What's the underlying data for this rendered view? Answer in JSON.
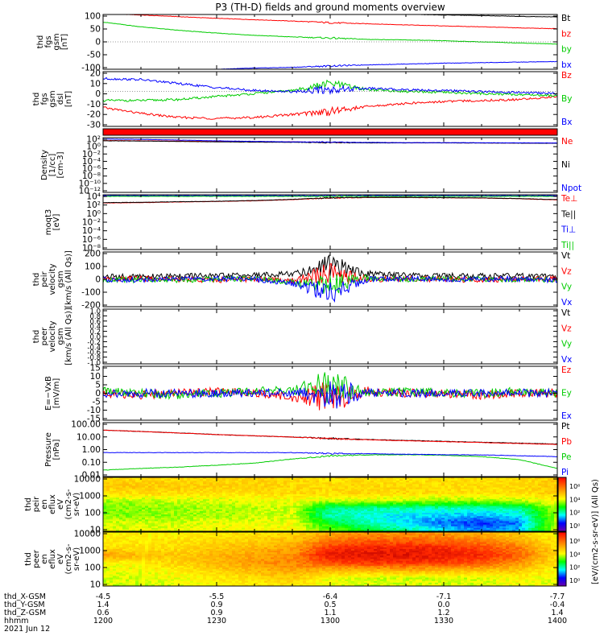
{
  "title": "P3 (TH-D) fields and ground moments overview",
  "colorbar_label": "[eV/(cm2-s-sr-eV)] (All Qs)",
  "colorbar_ticks": [
    "10⁶",
    "10⁴",
    "10²",
    "10⁰"
  ],
  "colors": {
    "black": "#000000",
    "red": "#ff0000",
    "green": "#00cc00",
    "blue": "#0000ff"
  },
  "footer": {
    "rows": [
      {
        "name": "thd_X-GSM",
        "values": [
          "-4.5",
          "-5.5",
          "-6.4",
          "-7.1",
          "-7.7"
        ]
      },
      {
        "name": "thd_Y-GSM",
        "values": [
          "1.4",
          "0.9",
          "0.5",
          "0.0",
          "-0.4"
        ]
      },
      {
        "name": "thd_Z-GSM",
        "values": [
          "0.6",
          "0.9",
          "1.1",
          "1.2",
          "1.4"
        ]
      },
      {
        "name": "hhmm",
        "values": [
          "1200",
          "1230",
          "1300",
          "1330",
          "1400"
        ]
      }
    ],
    "date": "2021 Jun 12"
  },
  "chart_data": [
    {
      "type": "line",
      "id": "fgs_gsm",
      "ylabel": [
        "thd",
        "fgs",
        "gsm",
        "[nT]"
      ],
      "ylim": [
        -100,
        100
      ],
      "yticks": [
        "100",
        "50",
        "0",
        "-50",
        "-100"
      ],
      "x": [
        "1200",
        "1210",
        "1220",
        "1230",
        "1240",
        "1250",
        "1300",
        "1310",
        "1320",
        "1330",
        "1340",
        "1350",
        "1400"
      ],
      "series": [
        {
          "name": "Bt",
          "color": "black",
          "values": [
            130,
            125,
            121,
            118,
            114,
            111,
            108,
            104,
            101,
            98,
            96,
            93,
            91
          ]
        },
        {
          "name": "bz",
          "color": "red",
          "values": [
            104,
            98,
            92,
            86,
            81,
            76,
            70,
            66,
            62,
            58,
            55,
            51,
            48
          ]
        },
        {
          "name": "by",
          "color": "green",
          "values": [
            72,
            55,
            42,
            32,
            24,
            18,
            14,
            9,
            7,
            4,
            0,
            -4,
            -8
          ]
        },
        {
          "name": "bx",
          "color": "blue",
          "values": [
            -115,
            -110,
            -105,
            -100,
            -96,
            -93,
            -88,
            -84,
            -81,
            -78,
            -76,
            -74,
            -72
          ]
        }
      ]
    },
    {
      "type": "line",
      "id": "fgs_dsl",
      "ylabel": [
        "thd",
        "fgs",
        "gsm",
        "dsl",
        "[nT]"
      ],
      "ylim": [
        -35,
        20
      ],
      "yticks": [
        "20",
        "10",
        "0",
        "-10",
        "-20",
        "-30"
      ],
      "x": [
        "1200",
        "1210",
        "1220",
        "1230",
        "1240",
        "1250",
        "1300",
        "1310",
        "1320",
        "1330",
        "1340",
        "1350",
        "1400"
      ],
      "series": [
        {
          "name": "Bz",
          "color": "red",
          "values": [
            -16,
            -22,
            -26,
            -27,
            -26,
            -23,
            -20,
            -15,
            -12,
            -10,
            -9,
            -8,
            -5
          ]
        },
        {
          "name": "By",
          "color": "green",
          "values": [
            -9,
            -9,
            -8,
            -5,
            -2,
            1,
            8,
            2,
            0,
            -1,
            -2,
            -3,
            -4
          ]
        },
        {
          "name": "Bx",
          "color": "blue",
          "values": [
            13,
            12,
            8,
            4,
            1,
            0,
            2,
            3,
            2,
            1,
            0,
            -1,
            -2
          ]
        }
      ]
    },
    {
      "type": "band",
      "id": "flag_bar",
      "color": "red"
    },
    {
      "type": "line",
      "id": "density",
      "ylabel": [
        "Density",
        "[1/cc]",
        "[cm-3]"
      ],
      "ylog": true,
      "ylim": [
        1e-14,
        100
      ],
      "yticks": [
        "10²",
        "10⁰",
        "10⁻²",
        "10⁻⁴",
        "10⁻⁶",
        "10⁻⁸",
        "10⁻¹⁰",
        "10⁻¹²"
      ],
      "x": [
        "1200",
        "1210",
        "1220",
        "1230",
        "1240",
        "1250",
        "1300",
        "1310",
        "1320",
        "1330",
        "1340",
        "1350",
        "1400"
      ],
      "series": [
        {
          "name": "Ne",
          "color": "red",
          "values": [
            15,
            12,
            10,
            8,
            7,
            6,
            4,
            3.5,
            3,
            3,
            3,
            2.8,
            2.5
          ]
        },
        {
          "name": "Ni",
          "color": "black",
          "values": [
            12,
            10,
            8,
            6,
            5,
            4.5,
            3.5,
            3,
            3,
            3,
            2.8,
            2.5,
            2.2
          ]
        },
        {
          "name": "Npot",
          "color": "blue",
          "values": [
            40,
            30,
            20,
            12,
            8,
            6,
            5,
            4,
            3.5,
            3.5,
            3.2,
            3,
            2.8
          ]
        }
      ]
    },
    {
      "type": "line",
      "id": "temp",
      "ylabel": [
        "moqt3",
        "[eV]"
      ],
      "ylog": true,
      "ylim": [
        1e-10,
        10000
      ],
      "yticks": [
        "10⁴",
        "10²",
        "10⁰",
        "10⁻²",
        "10⁻⁴",
        "10⁻⁶",
        "10⁻⁸"
      ],
      "x": [
        "1200",
        "1210",
        "1220",
        "1230",
        "1240",
        "1250",
        "1300",
        "1310",
        "1320",
        "1330",
        "1340",
        "1350",
        "1400"
      ],
      "series": [
        {
          "name": "Te⊥",
          "color": "red",
          "values": [
            80,
            100,
            150,
            200,
            300,
            600,
            1500,
            2000,
            2000,
            1800,
            1500,
            1000,
            500
          ]
        },
        {
          "name": "Te||",
          "color": "black",
          "values": [
            100,
            120,
            170,
            220,
            350,
            700,
            1700,
            2200,
            2100,
            1900,
            1600,
            1100,
            600
          ]
        },
        {
          "name": "Ti⊥",
          "color": "blue",
          "values": [
            6000,
            6000,
            6000,
            6000,
            6000,
            6000,
            6000,
            6000,
            6000,
            6000,
            6000,
            6000,
            6000
          ]
        },
        {
          "name": "Ti||",
          "color": "green",
          "values": [
            4000,
            4000,
            4000,
            4000,
            4000,
            4000,
            4000,
            4000,
            4000,
            4000,
            4000,
            4000,
            4000
          ]
        }
      ]
    },
    {
      "type": "line",
      "id": "peir_vel",
      "ylabel": [
        "thd",
        "peir",
        "velocity",
        "gsm",
        "[km/s (All Qs)]"
      ],
      "ylim": [
        -200,
        200
      ],
      "yticks": [
        "200",
        "100",
        "0",
        "-100",
        "-200"
      ],
      "x": [
        "1200",
        "1210",
        "1220",
        "1230",
        "1240",
        "1250",
        "1300",
        "1310",
        "1320",
        "1330",
        "1340",
        "1350",
        "1400"
      ],
      "series": [
        {
          "name": "Vt",
          "color": "black",
          "values": [
            20,
            20,
            25,
            25,
            30,
            40,
            100,
            40,
            30,
            25,
            25,
            25,
            20
          ]
        },
        {
          "name": "Vz",
          "color": "red",
          "values": [
            0,
            5,
            0,
            -5,
            0,
            -10,
            40,
            0,
            5,
            0,
            -5,
            0,
            5
          ]
        },
        {
          "name": "Vy",
          "color": "green",
          "values": [
            -5,
            0,
            -5,
            0,
            5,
            -20,
            -40,
            10,
            0,
            5,
            0,
            -5,
            0
          ]
        },
        {
          "name": "Vx",
          "color": "blue",
          "values": [
            0,
            -5,
            0,
            5,
            0,
            -30,
            -100,
            0,
            5,
            0,
            5,
            0,
            -5
          ]
        }
      ]
    },
    {
      "type": "line",
      "id": "peer_vel",
      "ylabel": [
        "thd",
        "peer",
        "velocity",
        "gsm",
        "[km/s (All Qs)]"
      ],
      "ylim": [
        -1,
        1
      ],
      "yticks": [
        "1.0",
        "0.8",
        "0.6",
        "0.4",
        "0.2",
        "0.0",
        "-0.2",
        "-0.4",
        "-0.6",
        "-0.8",
        "-1.0"
      ],
      "x": [],
      "series": [
        {
          "name": "Vt",
          "color": "black",
          "values": []
        },
        {
          "name": "Vz",
          "color": "red",
          "values": []
        },
        {
          "name": "Vy",
          "color": "green",
          "values": []
        },
        {
          "name": "Vx",
          "color": "blue",
          "values": []
        }
      ]
    },
    {
      "type": "line",
      "id": "efield",
      "ylabel": [
        "E=−VxB",
        "[mV/m]"
      ],
      "ylim": [
        -15,
        15
      ],
      "yticks": [
        "15",
        "10",
        "5",
        "0",
        "-5",
        "-10",
        "-15"
      ],
      "x": [
        "1200",
        "1210",
        "1220",
        "1230",
        "1240",
        "1250",
        "1300",
        "1310",
        "1320",
        "1330",
        "1340",
        "1350",
        "1400"
      ],
      "series": [
        {
          "name": "Ez",
          "color": "red",
          "values": [
            0,
            -1,
            0,
            1,
            0,
            -2,
            -3,
            1,
            0,
            0,
            -1,
            0,
            0
          ]
        },
        {
          "name": "Ey",
          "color": "green",
          "values": [
            1,
            0,
            -1,
            0,
            1,
            2,
            4,
            0,
            1,
            0,
            0,
            1,
            0
          ]
        },
        {
          "name": "Ex",
          "color": "blue",
          "values": [
            0,
            0,
            0,
            0,
            0,
            0,
            0,
            0,
            0,
            0,
            0,
            0,
            0
          ]
        }
      ]
    },
    {
      "type": "line",
      "id": "pressure",
      "ylabel": [
        "Pressure",
        "[nPa]"
      ],
      "ylog": true,
      "ylim": [
        0.01,
        100
      ],
      "yticks": [
        "100.00",
        "10.00",
        "1.00",
        "0.10",
        "0.01"
      ],
      "x": [
        "1200",
        "1210",
        "1220",
        "1230",
        "1240",
        "1250",
        "1300",
        "1310",
        "1320",
        "1330",
        "1340",
        "1350",
        "1400"
      ],
      "series": [
        {
          "name": "Pt",
          "color": "black",
          "values": [
            28,
            22,
            17,
            13,
            10.5,
            8.5,
            6.8,
            5.6,
            4.8,
            4.1,
            3.5,
            3.0,
            2.6
          ]
        },
        {
          "name": "Pb",
          "color": "red",
          "values": [
            28,
            22,
            17,
            13,
            10.5,
            8.5,
            6.5,
            5.3,
            4.5,
            3.9,
            3.3,
            2.8,
            2.4
          ]
        },
        {
          "name": "Pe",
          "color": "green",
          "values": [
            0.03,
            0.04,
            0.05,
            0.07,
            0.1,
            0.2,
            0.35,
            0.4,
            0.42,
            0.38,
            0.3,
            0.18,
            0.04
          ]
        },
        {
          "name": "Pi",
          "color": "blue",
          "values": [
            0.6,
            0.6,
            0.6,
            0.6,
            0.6,
            0.6,
            0.5,
            0.5,
            0.45,
            0.42,
            0.4,
            0.35,
            0.3
          ]
        }
      ]
    },
    {
      "type": "heatmap",
      "id": "peir_en",
      "ylabel": [
        "thd",
        "peir",
        "en",
        "eflux",
        "eV",
        "(cm2-s-",
        "sr-eV)"
      ],
      "ylog": true,
      "ylim": [
        5,
        30000
      ],
      "yticks": [
        "10000",
        "1000",
        "100",
        "10"
      ],
      "x": [
        "1200",
        "1210",
        "1220",
        "1230",
        "1240",
        "1250",
        "1300",
        "1310",
        "1320",
        "1330",
        "1340",
        "1350",
        "1400"
      ],
      "y": [
        "30000",
        "10000",
        "3000",
        "1000",
        "300",
        "100",
        "30",
        "10"
      ],
      "z": [
        [
          5.6,
          5.6,
          5.6,
          5.6,
          5.6,
          5.6,
          5.5,
          5.5,
          5.5,
          5.5,
          5.5,
          5.5,
          5.7
        ],
        [
          5.8,
          5.8,
          5.8,
          5.7,
          5.7,
          5.6,
          5.6,
          5.6,
          5.6,
          5.6,
          5.6,
          5.6,
          5.8
        ],
        [
          5.5,
          5.6,
          5.6,
          5.5,
          5.5,
          5.6,
          5.6,
          5.6,
          5.6,
          5.5,
          5.5,
          5.5,
          5.7
        ],
        [
          4.8,
          4.9,
          5.0,
          5.0,
          5.1,
          5.2,
          5.0,
          5.0,
          4.9,
          4.8,
          4.8,
          4.9,
          5.3
        ],
        [
          4.6,
          4.7,
          4.8,
          4.8,
          4.9,
          5.0,
          3.6,
          3.5,
          3.5,
          3.4,
          3.4,
          3.5,
          4.9
        ],
        [
          4.7,
          4.7,
          4.8,
          4.8,
          4.9,
          5.0,
          3.4,
          3.2,
          3.0,
          2.9,
          2.8,
          3.0,
          4.8
        ],
        [
          5.0,
          5.0,
          5.0,
          5.1,
          5.1,
          5.2,
          4.0,
          3.4,
          3.0,
          2.5,
          2.2,
          2.5,
          4.9
        ],
        [
          5.1,
          5.1,
          5.2,
          5.2,
          5.2,
          5.3,
          4.6,
          4.0,
          3.6,
          3.0,
          2.6,
          2.8,
          5.0
        ]
      ]
    },
    {
      "type": "heatmap",
      "id": "peer_en",
      "ylabel": [
        "thd",
        "peer",
        "en",
        "eflux",
        "eV",
        "(cm2-s-",
        "sr-eV)"
      ],
      "ylog": true,
      "ylim": [
        5,
        30000
      ],
      "yticks": [
        "10000",
        "1000",
        "100",
        "10"
      ],
      "x": [
        "1200",
        "1210",
        "1220",
        "1230",
        "1240",
        "1250",
        "1300",
        "1310",
        "1320",
        "1330",
        "1340",
        "1350",
        "1400"
      ],
      "y": [
        "30000",
        "10000",
        "3000",
        "1000",
        "300",
        "100",
        "30",
        "10"
      ],
      "z": [
        [
          5.3,
          5.3,
          5.3,
          5.4,
          5.5,
          5.6,
          6.1,
          6.3,
          6.3,
          6.2,
          6.0,
          5.7,
          5.2
        ],
        [
          5.4,
          5.4,
          5.5,
          5.6,
          5.7,
          5.9,
          6.6,
          6.8,
          6.8,
          6.7,
          6.5,
          6.1,
          5.4
        ],
        [
          5.5,
          5.5,
          5.6,
          5.8,
          6.0,
          6.2,
          7.2,
          7.4,
          7.4,
          7.3,
          7.0,
          6.6,
          5.6
        ],
        [
          6.3,
          5.9,
          5.8,
          6.0,
          6.2,
          6.4,
          7.6,
          7.6,
          7.6,
          7.5,
          7.3,
          6.8,
          5.7
        ],
        [
          5.2,
          5.4,
          5.7,
          6.0,
          6.3,
          6.5,
          7.0,
          7.2,
          7.2,
          7.1,
          6.9,
          6.4,
          5.5
        ],
        [
          5.1,
          5.2,
          5.4,
          5.7,
          6.0,
          6.2,
          6.0,
          6.0,
          6.1,
          6.0,
          5.9,
          5.8,
          5.3
        ],
        [
          5.0,
          5.1,
          5.2,
          5.4,
          5.6,
          5.8,
          5.2,
          5.0,
          5.0,
          5.0,
          5.0,
          5.3,
          5.1
        ],
        [
          4.9,
          5.0,
          5.1,
          5.3,
          5.4,
          5.5,
          5.1,
          5.0,
          5.0,
          5.0,
          5.0,
          5.2,
          5.1
        ]
      ]
    }
  ]
}
